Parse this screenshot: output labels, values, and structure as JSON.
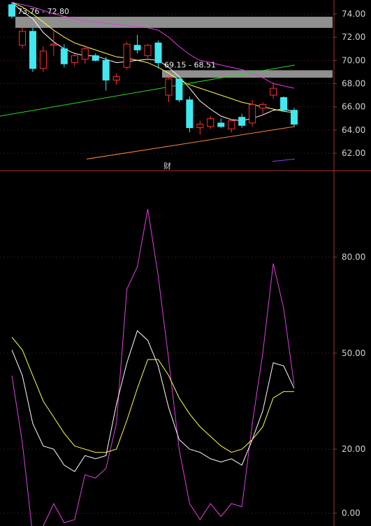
{
  "chart_data": [
    {
      "type": "candlestick",
      "ylim": [
        60.5,
        75.2
      ],
      "y_ticks": [
        "74.00",
        "72.00",
        "70.00",
        "68.00",
        "66.00",
        "64.00",
        "62.00"
      ],
      "y_tick_values": [
        74,
        72,
        70,
        68,
        66,
        64,
        62
      ],
      "grid": true,
      "zones": [
        {
          "label": "73.76 - 72.80",
          "low": 72.8,
          "high": 73.76
        },
        {
          "label": "69.15 - 68.51",
          "low": 68.51,
          "high": 69.15
        }
      ],
      "marker": "财",
      "candles": [
        {
          "o": 74.8,
          "h": 75.0,
          "l": 73.6,
          "c": 73.8
        },
        {
          "o": 71.3,
          "h": 72.8,
          "l": 71.0,
          "c": 72.5
        },
        {
          "o": 72.5,
          "h": 72.8,
          "l": 69.0,
          "c": 69.3
        },
        {
          "o": 69.3,
          "h": 71.2,
          "l": 69.0,
          "c": 70.8
        },
        {
          "o": 71.3,
          "h": 72.6,
          "l": 70.4,
          "c": 71.4
        },
        {
          "o": 71.0,
          "h": 71.4,
          "l": 69.4,
          "c": 69.7
        },
        {
          "o": 69.8,
          "h": 70.6,
          "l": 69.5,
          "c": 70.4
        },
        {
          "o": 70.1,
          "h": 71.3,
          "l": 69.7,
          "c": 71.0
        },
        {
          "o": 70.4,
          "h": 70.6,
          "l": 69.9,
          "c": 70.0
        },
        {
          "o": 70.0,
          "h": 70.3,
          "l": 67.4,
          "c": 68.3
        },
        {
          "o": 68.3,
          "h": 68.9,
          "l": 67.9,
          "c": 68.6
        },
        {
          "o": 69.4,
          "h": 71.6,
          "l": 69.2,
          "c": 71.4
        },
        {
          "o": 71.3,
          "h": 72.2,
          "l": 70.6,
          "c": 70.9
        },
        {
          "o": 70.4,
          "h": 71.4,
          "l": 70.2,
          "c": 71.3
        },
        {
          "o": 71.5,
          "h": 71.7,
          "l": 69.3,
          "c": 69.8
        },
        {
          "o": 67.0,
          "h": 68.7,
          "l": 66.4,
          "c": 68.4
        },
        {
          "o": 68.4,
          "h": 68.5,
          "l": 66.4,
          "c": 66.6
        },
        {
          "o": 66.6,
          "h": 66.9,
          "l": 63.8,
          "c": 64.2
        },
        {
          "o": 64.2,
          "h": 64.8,
          "l": 63.6,
          "c": 64.5
        },
        {
          "o": 64.3,
          "h": 65.2,
          "l": 64.1,
          "c": 65.0
        },
        {
          "o": 64.6,
          "h": 65.0,
          "l": 64.2,
          "c": 64.3
        },
        {
          "o": 64.1,
          "h": 64.9,
          "l": 63.8,
          "c": 64.8
        },
        {
          "o": 65.1,
          "h": 65.4,
          "l": 64.2,
          "c": 64.4
        },
        {
          "o": 64.6,
          "h": 66.6,
          "l": 64.3,
          "c": 66.2
        },
        {
          "o": 65.9,
          "h": 66.4,
          "l": 65.3,
          "c": 66.2
        },
        {
          "o": 67.0,
          "h": 68.1,
          "l": 66.7,
          "c": 67.6
        },
        {
          "o": 66.8,
          "h": 66.9,
          "l": 65.6,
          "c": 65.7
        },
        {
          "o": 65.7,
          "h": 65.9,
          "l": 64.3,
          "c": 64.5
        }
      ],
      "series": [
        {
          "color": "#ffffff",
          "values": [
            75.0,
            74.2,
            73.6,
            72.4,
            71.6,
            71.0,
            70.6,
            70.4,
            70.4,
            70.1,
            69.8,
            69.9,
            70.0,
            70.1,
            70.0,
            69.4,
            68.6,
            67.6,
            66.5,
            65.8,
            65.2,
            64.9,
            64.8,
            65.0,
            65.3,
            65.7,
            65.8,
            65.6
          ]
        },
        {
          "color": "#ffff44",
          "values": [
            75.0,
            74.6,
            74.0,
            73.3,
            72.6,
            72.0,
            71.5,
            71.2,
            70.9,
            70.6,
            70.3,
            70.2,
            70.0,
            69.8,
            69.4,
            68.9,
            68.3,
            67.9,
            67.6,
            67.3,
            67.0,
            66.7,
            66.4,
            66.2,
            66.0,
            65.8,
            65.6,
            65.5
          ]
        },
        {
          "color": "#e040e0",
          "values": [
            75.0,
            74.8,
            74.6,
            74.3,
            74.0,
            73.8,
            73.6,
            73.4,
            73.3,
            73.2,
            73.1,
            73.0,
            72.9,
            72.8,
            72.6,
            72.0,
            71.2,
            70.5,
            70.0,
            69.8,
            69.6,
            69.4,
            69.2,
            68.9,
            68.5,
            68.0,
            67.8,
            67.6
          ]
        },
        {
          "color": "#22dd22",
          "start": 65.2,
          "end": 69.6
        },
        {
          "color": "#ff8833",
          "start": 61.5,
          "end": 64.3
        }
      ]
    },
    {
      "type": "line",
      "ylim": [
        -4,
        107
      ],
      "y_ticks": [
        "80.00",
        "50.00",
        "20.00",
        "0.00"
      ],
      "y_tick_values": [
        80,
        50,
        20,
        0
      ],
      "grid": true,
      "series": [
        {
          "color": "#e040e0",
          "values": [
            43,
            22,
            -7,
            -4,
            3,
            -3,
            -2,
            12,
            11,
            14,
            28,
            70,
            77,
            95,
            74,
            48,
            20,
            3,
            -2,
            3,
            -1,
            3,
            2,
            28,
            50,
            78,
            64,
            40
          ]
        },
        {
          "color": "#ffffff",
          "values": [
            51,
            43,
            28,
            21,
            20,
            15,
            13,
            18,
            17,
            18,
            34,
            47,
            57,
            54,
            46,
            33,
            23,
            20,
            19,
            17,
            16,
            17,
            15,
            23,
            32,
            47,
            46,
            39
          ]
        },
        {
          "color": "#ffff44",
          "values": [
            55,
            51,
            43,
            35,
            30,
            25,
            21,
            20,
            19,
            19,
            20,
            29,
            39,
            48,
            48,
            43,
            36,
            31,
            27,
            24,
            21,
            19,
            20,
            23,
            27,
            36,
            38,
            38
          ]
        }
      ]
    }
  ]
}
